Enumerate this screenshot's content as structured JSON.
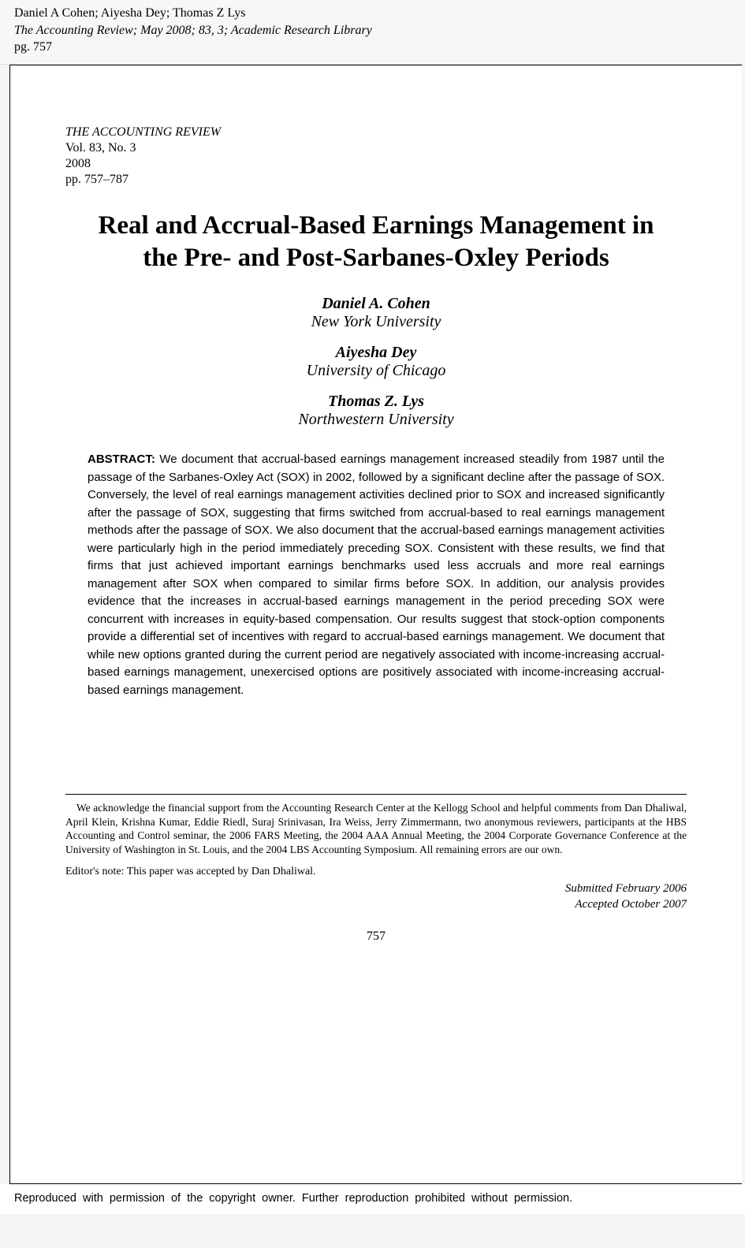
{
  "header": {
    "authors_line": "Daniel A Cohen; Aiyesha Dey; Thomas Z Lys",
    "journal_italic": "The Accounting Review;",
    "journal_rest": " May 2008; 83, 3; Academic Research Library",
    "pg_line": "pg. 757"
  },
  "journal_block": {
    "name": "THE ACCOUNTING REVIEW",
    "vol": "Vol. 83, No. 3",
    "year": "2008",
    "pages": "pp. 757–787"
  },
  "title": "Real and Accrual-Based Earnings Management in the Pre- and Post-Sarbanes-Oxley Periods",
  "authors": [
    {
      "name": "Daniel A. Cohen",
      "affiliation": "New York University"
    },
    {
      "name": "Aiyesha Dey",
      "affiliation": "University of Chicago"
    },
    {
      "name": "Thomas Z. Lys",
      "affiliation": "Northwestern University"
    }
  ],
  "abstract_label": "ABSTRACT:",
  "abstract_text": " We document that accrual-based earnings management increased steadily from 1987 until the passage of the Sarbanes-Oxley Act (SOX) in 2002, followed by a significant decline after the passage of SOX. Conversely, the level of real earnings management activities declined prior to SOX and increased significantly after the passage of SOX, suggesting that firms switched from accrual-based to real earnings management methods after the passage of SOX. We also document that the accrual-based earnings management activities were particularly high in the period immediately preceding SOX. Consistent with these results, we find that firms that just achieved important earnings benchmarks used less accruals and more real earnings management after SOX when compared to similar firms before SOX. In addition, our analysis provides evidence that the increases in accrual-based earnings management in the period preceding SOX were concurrent with increases in equity-based compensation. Our results suggest that stock-option components provide a differential set of incentives with regard to accrual-based earnings management. We document that while new options granted during the current period are negatively associated with income-increasing accrual-based earnings management, unexercised options are positively associated with income-increasing accrual-based earnings management.",
  "acknowledgments": "We acknowledge the financial support from the Accounting Research Center at the Kellogg School and helpful comments from Dan Dhaliwal, April Klein, Krishna Kumar, Eddie Riedl, Suraj Srinivasan, Ira Weiss, Jerry Zimmermann, two anonymous reviewers, participants at the HBS Accounting and Control seminar, the 2006 FARS Meeting, the 2004 AAA Annual Meeting, the 2004 Corporate Governance Conference at the University of Washington in St. Louis, and the 2004 LBS Accounting Symposium. All remaining errors are our own.",
  "editors_note": "Editor's note: This paper was accepted by Dan Dhaliwal.",
  "dates": {
    "submitted": "Submitted February 2006",
    "accepted": "Accepted October 2007"
  },
  "page_number": "757",
  "copyright": "Reproduced with permission of the copyright owner.  Further reproduction prohibited without permission."
}
